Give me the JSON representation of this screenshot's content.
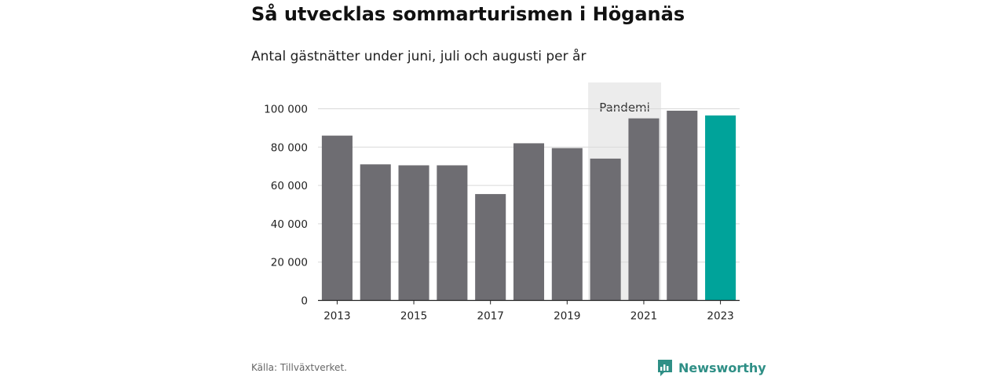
{
  "title": "Så utvecklas sommarturismen i Höganäs",
  "subtitle": "Antal gästnätter under juni, juli och augusti per år",
  "source": "Källa: Tillväxtverket.",
  "brand": {
    "name": "Newsworthy",
    "logo_icon": "bar-chart-speech-bubble-icon"
  },
  "colors": {
    "bar": "#6e6d72",
    "highlight": "#00a39a",
    "annotation_band": "#ececec",
    "brand": "#2f8f86"
  },
  "chart_data": {
    "type": "bar",
    "title": "Så utvecklas sommarturismen i Höganäs",
    "subtitle": "Antal gästnätter under juni, juli och augusti per år",
    "categories": [
      "2013",
      "2014",
      "2015",
      "2016",
      "2017",
      "2018",
      "2019",
      "2020",
      "2021",
      "2022",
      "2023"
    ],
    "values": [
      86000,
      71000,
      70500,
      70500,
      55500,
      82000,
      79500,
      74000,
      95000,
      99000,
      96500
    ],
    "highlight_category": "2023",
    "x_tick_labels": [
      "2013",
      "2015",
      "2017",
      "2019",
      "2021",
      "2023"
    ],
    "y_ticks": [
      0,
      20000,
      40000,
      60000,
      80000,
      100000
    ],
    "y_tick_labels": [
      "0",
      "20 000",
      "40 000",
      "60 000",
      "80 000",
      "100 000"
    ],
    "ylim": [
      0,
      100000
    ],
    "grid": true,
    "legend": "none",
    "annotation": {
      "label": "Pandemi",
      "from": "2020",
      "to": "2021"
    }
  }
}
